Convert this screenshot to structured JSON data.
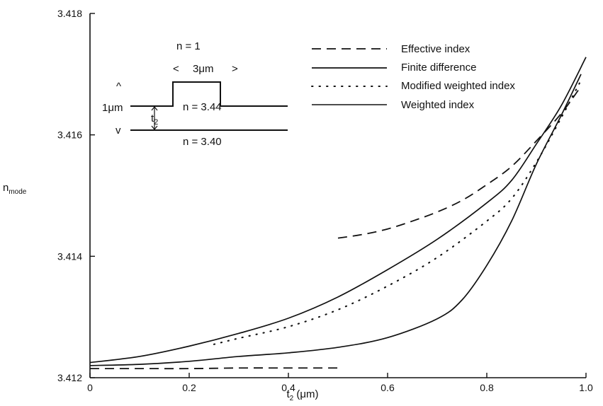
{
  "chart_data": {
    "type": "line",
    "title": "",
    "xlabel": "t",
    "xlabel_sub": "2",
    "xlabel_unit": " (μm)",
    "ylabel": "n",
    "ylabel_sub": "mode",
    "xlim": [
      0,
      1.0
    ],
    "ylim": [
      3.412,
      3.418
    ],
    "x_ticks": [
      {
        "value": 0,
        "label": "0"
      },
      {
        "value": 0.2,
        "label": "0.2"
      },
      {
        "value": 0.4,
        "label": "0.4"
      },
      {
        "value": 0.6,
        "label": "0.6"
      },
      {
        "value": 0.8,
        "label": "0.8"
      },
      {
        "value": 1.0,
        "label": "1.0"
      }
    ],
    "y_ticks": [
      {
        "value": 3.412,
        "label": "3.412"
      },
      {
        "value": 3.414,
        "label": "3.414"
      },
      {
        "value": 3.416,
        "label": "3.416"
      },
      {
        "value": 3.418,
        "label": "3.418"
      }
    ],
    "grid": false,
    "legend_position": "top-right",
    "series": [
      {
        "name": "Effective index",
        "style": "dashed",
        "segments": [
          {
            "x": [
              0,
              0.1,
              0.2,
              0.3,
              0.4,
              0.5
            ],
            "y": [
              3.41215,
              3.41215,
              3.41215,
              3.41216,
              3.41216,
              3.41216
            ]
          },
          {
            "x": [
              0.5,
              0.55,
              0.6,
              0.65,
              0.7,
              0.75,
              0.8,
              0.85,
              0.9,
              0.95,
              0.99
            ],
            "y": [
              3.4143,
              3.41436,
              3.41445,
              3.41458,
              3.41473,
              3.41492,
              3.41518,
              3.41548,
              3.4159,
              3.41635,
              3.4168
            ]
          }
        ]
      },
      {
        "name": "Finite difference",
        "style": "solid",
        "segments": [
          {
            "x": [
              0,
              0.1,
              0.2,
              0.3,
              0.4,
              0.5,
              0.6,
              0.7,
              0.8,
              0.85,
              0.9,
              0.95,
              1.0
            ],
            "y": [
              3.41225,
              3.41235,
              3.41252,
              3.41273,
              3.41298,
              3.41333,
              3.41378,
              3.41428,
              3.41488,
              3.41525,
              3.41585,
              3.41648,
              3.41728
            ]
          }
        ]
      },
      {
        "name": "Modified weighted index",
        "style": "dotted",
        "segments": [
          {
            "x": [
              0.25,
              0.3,
              0.4,
              0.5,
              0.6,
              0.7,
              0.8,
              0.85,
              0.9,
              0.95,
              0.99
            ],
            "y": [
              3.41255,
              3.41265,
              3.41284,
              3.41312,
              3.41351,
              3.41398,
              3.41458,
              3.41495,
              3.41555,
              3.41628,
              3.4169
            ]
          }
        ]
      },
      {
        "name": "Weighted index",
        "style": "solid",
        "segments": [
          {
            "x": [
              0,
              0.1,
              0.2,
              0.3,
              0.4,
              0.5,
              0.6,
              0.7,
              0.75,
              0.8,
              0.85,
              0.9,
              0.95,
              0.99
            ],
            "y": [
              3.4122,
              3.41222,
              3.41227,
              3.41235,
              3.41241,
              3.4125,
              3.41266,
              3.41297,
              3.41328,
              3.41385,
              3.41458,
              3.41552,
              3.41632,
              3.417
            ]
          }
        ]
      }
    ],
    "inset": {
      "n_top": "n = 1",
      "width_label": "3μm",
      "width_left_arrow": "<",
      "width_right_arrow": ">",
      "height_label": "1μm",
      "up_arrow": "^",
      "down_arrow": "v",
      "t_label": "t",
      "t_sub": "2",
      "n_guide": "n = 3.44",
      "n_substrate": "n = 3.40"
    }
  }
}
